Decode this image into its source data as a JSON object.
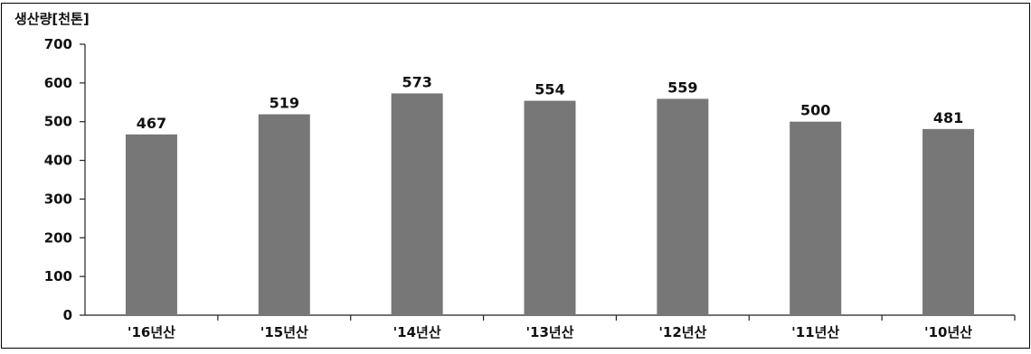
{
  "chart_data": {
    "type": "bar",
    "title": "",
    "ylabel": "생산량[천톤]",
    "xlabel": "",
    "categories": [
      "'16년산",
      "'15년산",
      "'14년산",
      "'13년산",
      "'12년산",
      "'11년산",
      "'10년산"
    ],
    "values": [
      467,
      519,
      573,
      554,
      559,
      500,
      481
    ],
    "data_labels": [
      "467",
      "519",
      "573",
      "554",
      "559",
      "500",
      "481"
    ],
    "ylim": [
      0,
      700
    ],
    "y_ticks": [
      0,
      100,
      200,
      300,
      400,
      500,
      600,
      700
    ],
    "grid": false,
    "legend": "none",
    "bar_color": "#777777"
  }
}
